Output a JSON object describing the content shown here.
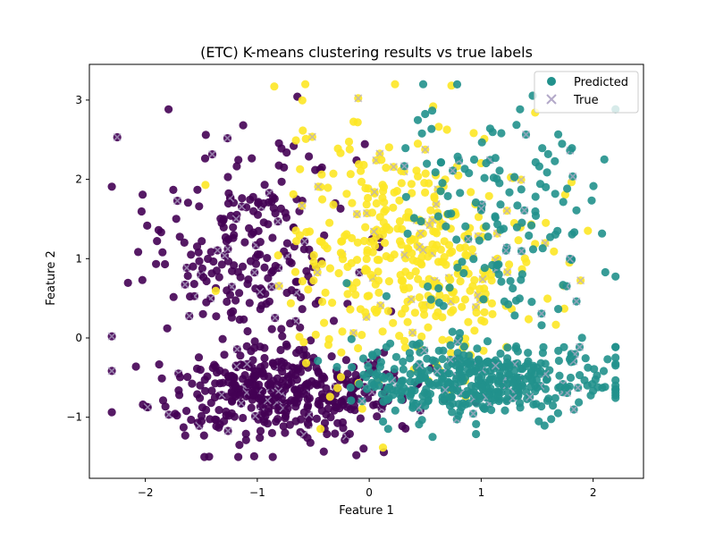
{
  "chart_data": {
    "type": "scatter",
    "title": "(ETC) K-means clustering results vs true labels",
    "xlabel": "Feature 1",
    "ylabel": "Feature 2",
    "xlim": [
      -2.5,
      2.45
    ],
    "ylim": [
      -1.77,
      3.45
    ],
    "xticks": [
      -2,
      -1,
      0,
      1,
      2
    ],
    "yticks": [
      -1,
      0,
      1,
      2,
      3
    ],
    "grid": false,
    "legend": {
      "placement": "top-right",
      "entries": [
        {
          "label": "Predicted",
          "marker": "circle",
          "color": "#21918c"
        },
        {
          "label": "True",
          "marker": "x",
          "color": "#b3a9c9"
        }
      ]
    },
    "clusters": [
      {
        "color": "#440154",
        "center": [
          -1.1,
          1.1
        ],
        "spread": [
          0.45,
          0.7
        ],
        "count": 240
      },
      {
        "color": "#440154",
        "center": [
          -0.85,
          -0.7
        ],
        "spread": [
          0.55,
          0.28
        ],
        "count": 420
      },
      {
        "color": "#fde725",
        "center": [
          0.2,
          1.2
        ],
        "spread": [
          0.5,
          0.8
        ],
        "count": 260
      },
      {
        "color": "#fde725",
        "center": [
          0.75,
          0.8
        ],
        "spread": [
          0.55,
          0.6
        ],
        "count": 160
      },
      {
        "color": "#21918c",
        "center": [
          1.15,
          1.5
        ],
        "spread": [
          0.45,
          0.7
        ],
        "count": 150
      },
      {
        "color": "#21918c",
        "center": [
          1.0,
          -0.55
        ],
        "spread": [
          0.55,
          0.25
        ],
        "count": 430
      }
    ]
  }
}
